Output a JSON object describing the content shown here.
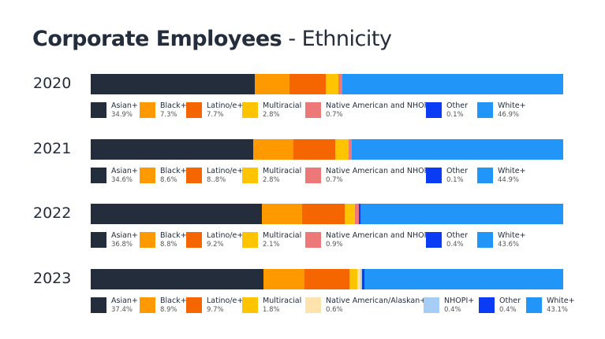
{
  "title_bold": "Corporate Employees",
  "title_light": "- Ethnicity",
  "chart_data": {
    "type": "bar",
    "stacked": true,
    "orientation": "horizontal",
    "categories": [
      "2020",
      "2021",
      "2022",
      "2023"
    ],
    "groups": [
      {
        "year": "2020",
        "series": [
          {
            "name": "Asian+",
            "value": 34.9,
            "label": "34.9%",
            "color": "#232d3c"
          },
          {
            "name": "Black+",
            "value": 7.3,
            "label": "7.3%",
            "color": "#ff9900"
          },
          {
            "name": "Latino/e+",
            "value": 7.7,
            "label": "7.7%",
            "color": "#f56600"
          },
          {
            "name": "Multiracial",
            "value": 2.8,
            "label": "2.8%",
            "color": "#ffc400"
          },
          {
            "name": "Native American and NHOPI+",
            "value": 0.7,
            "label": "0.7%",
            "color": "#ec7877"
          },
          {
            "name": "Other",
            "value": 0.1,
            "label": "0.1%",
            "color": "#0a3cf5"
          },
          {
            "name": "White+",
            "value": 46.9,
            "label": "46.9%",
            "color": "#2196f8"
          }
        ]
      },
      {
        "year": "2021",
        "series": [
          {
            "name": "Asian+",
            "value": 34.6,
            "label": "34.6%",
            "color": "#232d3c"
          },
          {
            "name": "Black+",
            "value": 8.6,
            "label": "8.6%",
            "color": "#ff9900"
          },
          {
            "name": "Latino/e+",
            "value": 8.8,
            "label": "8..8%",
            "color": "#f56600"
          },
          {
            "name": "Multiracial",
            "value": 2.8,
            "label": "2.8%",
            "color": "#ffc400"
          },
          {
            "name": "Native American and NHOPI+",
            "value": 0.7,
            "label": "0.7%",
            "color": "#ec7877"
          },
          {
            "name": "Other",
            "value": 0.1,
            "label": "0.1%",
            "color": "#0a3cf5"
          },
          {
            "name": "White+",
            "value": 44.9,
            "label": "44.9%",
            "color": "#2196f8"
          }
        ]
      },
      {
        "year": "2022",
        "series": [
          {
            "name": "Asian+",
            "value": 36.8,
            "label": "36.8%",
            "color": "#232d3c"
          },
          {
            "name": "Black+",
            "value": 8.8,
            "label": "8.8%",
            "color": "#ff9900"
          },
          {
            "name": "Latino/e+",
            "value": 9.2,
            "label": "9.2%",
            "color": "#f56600"
          },
          {
            "name": "Multiracial",
            "value": 2.1,
            "label": "2.1%",
            "color": "#ffc400"
          },
          {
            "name": "Native American and NHOPI+",
            "value": 0.9,
            "label": "0.9%",
            "color": "#ec7877"
          },
          {
            "name": "Other",
            "value": 0.4,
            "label": "0.4%",
            "color": "#0a3cf5"
          },
          {
            "name": "White+",
            "value": 43.6,
            "label": "43.6%",
            "color": "#2196f8"
          }
        ]
      },
      {
        "year": "2023",
        "series": [
          {
            "name": "Asian+",
            "value": 37.4,
            "label": "37.4%",
            "color": "#232d3c"
          },
          {
            "name": "Black+",
            "value": 8.9,
            "label": "8.9%",
            "color": "#ff9900"
          },
          {
            "name": "Latino/e+",
            "value": 9.7,
            "label": "9.7%",
            "color": "#f56600"
          },
          {
            "name": "Multiracial",
            "value": 1.8,
            "label": "1.8%",
            "color": "#ffc400"
          },
          {
            "name": "Native American/Alaskan+",
            "value": 0.6,
            "label": "0.6%",
            "color": "#ffe3ae"
          },
          {
            "name": "NHOPI+",
            "value": 0.4,
            "label": "0.4%",
            "color": "#a5cdf5"
          },
          {
            "name": "Other",
            "value": 0.4,
            "label": "0.4%",
            "color": "#0a3cf5"
          },
          {
            "name": "White+",
            "value": 43.1,
            "label": "43.1%",
            "color": "#2196f8"
          }
        ]
      }
    ]
  }
}
